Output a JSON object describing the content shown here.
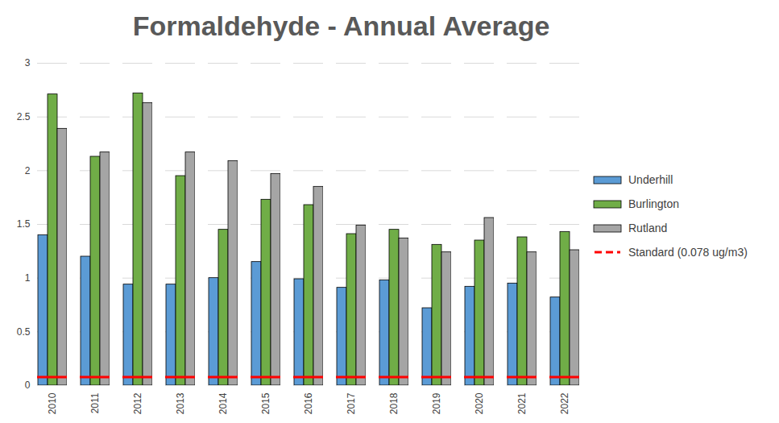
{
  "chart_data": {
    "type": "bar",
    "title": "Formaldehyde - Annual Average",
    "categories": [
      "2010",
      "2011",
      "2012",
      "2013",
      "2014",
      "2015",
      "2016",
      "2017",
      "2018",
      "2019",
      "2020",
      "2021",
      "2022"
    ],
    "series": [
      {
        "name": "Underhill",
        "color": "#5b9bd5",
        "values": [
          1.4,
          1.2,
          0.94,
          0.94,
          1.0,
          1.15,
          0.99,
          0.91,
          0.98,
          0.72,
          0.92,
          0.95,
          0.82
        ]
      },
      {
        "name": "Burlington",
        "color": "#70ad47",
        "values": [
          2.71,
          2.13,
          2.72,
          1.95,
          1.45,
          1.73,
          1.68,
          1.41,
          1.45,
          1.31,
          1.35,
          1.38,
          1.43
        ]
      },
      {
        "name": "Rutland",
        "color": "#a5a5a5",
        "values": [
          2.39,
          2.17,
          2.63,
          2.17,
          2.09,
          1.97,
          1.85,
          1.49,
          1.37,
          1.24,
          1.56,
          1.24,
          1.26
        ]
      },
      {
        "name": "Standard (0.078 ug/m3)",
        "type": "line",
        "line_style": "dashed",
        "color": "#ff0000",
        "values": [
          0.078,
          0.078,
          0.078,
          0.078,
          0.078,
          0.078,
          0.078,
          0.078,
          0.078,
          0.078,
          0.078,
          0.078,
          0.078
        ]
      }
    ],
    "ylim": [
      0,
      3
    ],
    "yticks": [
      0,
      0.5,
      1,
      1.5,
      2,
      2.5,
      3
    ],
    "grid": true,
    "legend": "right"
  }
}
